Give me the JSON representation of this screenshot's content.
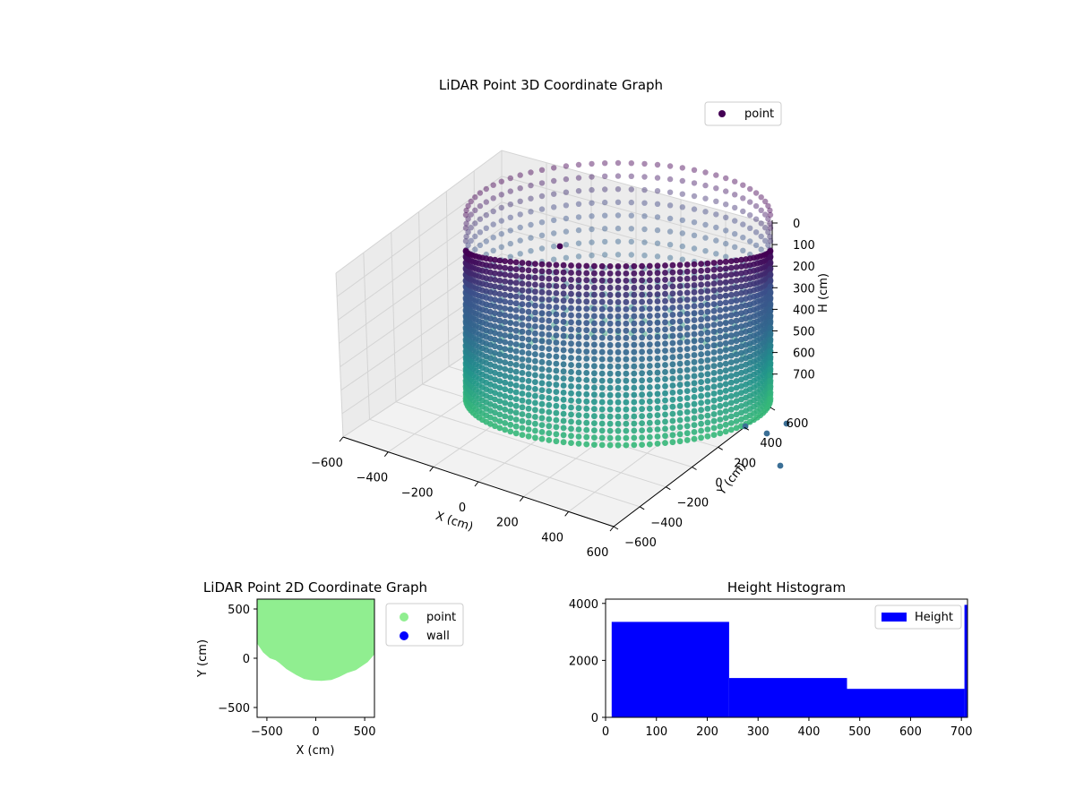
{
  "chart_data": [
    {
      "type": "scatter",
      "subtype": "3d",
      "title": "LiDAR Point 3D Coordinate Graph",
      "xlabel": "X (cm)",
      "ylabel": "Y (cm)",
      "zlabel": "H (cm)",
      "xlim": [
        -600,
        600
      ],
      "ylim": [
        -600,
        600
      ],
      "zlim": [
        700,
        0
      ],
      "x_ticks": [
        "−600",
        "−400",
        "−200",
        "0",
        "200",
        "400",
        "600"
      ],
      "y_ticks": [
        "−600",
        "−400",
        "−200",
        "0",
        "200",
        "400",
        "600"
      ],
      "z_ticks": [
        "0",
        "100",
        "200",
        "300",
        "400",
        "500",
        "600",
        "700"
      ],
      "z_inverted": true,
      "grid": true,
      "legend": {
        "placement": "top-right",
        "entries": [
          "point"
        ]
      },
      "series": [
        {
          "name": "point",
          "colormap": "viridis",
          "description_of_shape": "cylindrical wall of points around the origin",
          "x_range": [
            -350,
            520
          ],
          "y_range": [
            -250,
            620
          ],
          "h_range": [
            0,
            700
          ]
        }
      ],
      "colors": {
        "high": "#440154",
        "mid": "#31688e",
        "low": "#35b779"
      }
    },
    {
      "type": "scatter",
      "title": "LiDAR Point 2D Coordinate Graph",
      "xlabel": "X (cm)",
      "ylabel": "Y (cm)",
      "xlim": [
        -600,
        600
      ],
      "ylim": [
        -600,
        600
      ],
      "x_ticks": [
        "−500",
        "0",
        "500"
      ],
      "y_ticks": [
        "−500",
        "0",
        "500"
      ],
      "legend": {
        "placement": "outside-right",
        "entries": [
          "point",
          "wall"
        ]
      },
      "series": [
        {
          "name": "point",
          "color": "#90ee90",
          "outline": [
            [
              -600,
              600
            ],
            [
              -600,
              150
            ],
            [
              -540,
              60
            ],
            [
              -470,
              0
            ],
            [
              -410,
              -20
            ],
            [
              -370,
              -50
            ],
            [
              -300,
              -110
            ],
            [
              -200,
              -170
            ],
            [
              -120,
              -210
            ],
            [
              -40,
              -225
            ],
            [
              60,
              -230
            ],
            [
              160,
              -220
            ],
            [
              240,
              -190
            ],
            [
              320,
              -150
            ],
            [
              410,
              -120
            ],
            [
              530,
              -40
            ],
            [
              600,
              40
            ],
            [
              600,
              600
            ]
          ]
        },
        {
          "name": "wall",
          "color": "#0000ff",
          "points": []
        }
      ]
    },
    {
      "type": "bar",
      "subtype": "histogram",
      "title": "Height Histogram",
      "xlim": [
        0,
        712
      ],
      "ylim": [
        0,
        4150
      ],
      "x_ticks": [
        "0",
        "100",
        "200",
        "300",
        "400",
        "500",
        "600",
        "700"
      ],
      "y_ticks": [
        "0",
        "2000",
        "4000"
      ],
      "legend": {
        "placement": "top-right",
        "entries": [
          "Height"
        ]
      },
      "series": [
        {
          "name": "Height",
          "color": "#0000ff",
          "bins": [
            {
              "from": 12,
              "to": 243,
              "count": 3350
            },
            {
              "from": 243,
              "to": 475,
              "count": 1380
            },
            {
              "from": 475,
              "to": 706,
              "count": 1000
            },
            {
              "from": 706,
              "to": 712,
              "count": 3950
            }
          ]
        }
      ]
    }
  ]
}
